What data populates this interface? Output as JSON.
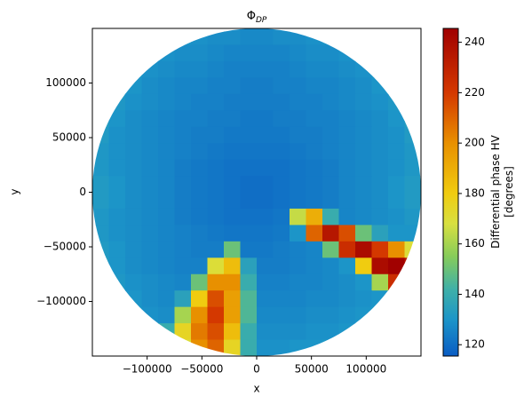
{
  "chart_data": {
    "type": "heatmap",
    "title": "Φ",
    "title_sub": "DP",
    "x_label": "x",
    "y_label": "y",
    "colorbar_label": [
      "Differential phase HV",
      "[degrees]"
    ],
    "xlim": [
      -150000,
      150000
    ],
    "ylim": [
      -150000,
      150000
    ],
    "xticks": [
      {
        "value": -100000,
        "label": "−100000"
      },
      {
        "value": -50000,
        "label": "−50000"
      },
      0,
      50000,
      100000
    ],
    "yticks": [
      {
        "value": -100000,
        "label": "−100000"
      },
      {
        "value": -50000,
        "label": "−50000"
      },
      0,
      50000,
      100000
    ],
    "clim": [
      115.5,
      245.5
    ],
    "cticks": [
      120,
      140,
      160,
      180,
      200,
      220,
      240
    ],
    "colorscale": [
      [
        115.5,
        "#0a5cc4"
      ],
      [
        130,
        "#1c95c8"
      ],
      [
        142,
        "#3fb0a8"
      ],
      [
        155,
        "#86cc5a"
      ],
      [
        168,
        "#d8e040"
      ],
      [
        180,
        "#f0cc10"
      ],
      [
        200,
        "#e89000"
      ],
      [
        220,
        "#d43800"
      ],
      [
        245.5,
        "#a00000"
      ]
    ],
    "x": [
      -142500,
      -127500,
      -112500,
      -97500,
      -82500,
      -67500,
      -52500,
      -37500,
      -22500,
      -7500,
      7500,
      22500,
      37500,
      52500,
      67500,
      82500,
      97500,
      112500,
      127500,
      142500
    ],
    "y": [
      142500,
      127500,
      112500,
      97500,
      82500,
      67500,
      52500,
      37500,
      22500,
      7500,
      -7500,
      -22500,
      -37500,
      -52500,
      -67500,
      -82500,
      -97500,
      -112500,
      -127500,
      -142500
    ],
    "z": [
      [
        null,
        null,
        null,
        null,
        null,
        130,
        129,
        128,
        128,
        127,
        127,
        128,
        128,
        129,
        130,
        null,
        null,
        null,
        null,
        null
      ],
      [
        null,
        null,
        null,
        131,
        129,
        128,
        128,
        127,
        126,
        126,
        126,
        126,
        127,
        128,
        128,
        129,
        131,
        null,
        null,
        null
      ],
      [
        null,
        null,
        131,
        129,
        128,
        127,
        127,
        126,
        125,
        125,
        125,
        125,
        126,
        127,
        127,
        128,
        129,
        131,
        null,
        null
      ],
      [
        null,
        132,
        130,
        128,
        127,
        126,
        126,
        125,
        125,
        124,
        124,
        125,
        125,
        126,
        126,
        127,
        128,
        130,
        132,
        null
      ],
      [
        null,
        131,
        129,
        128,
        127,
        126,
        125,
        125,
        124,
        124,
        124,
        124,
        125,
        125,
        126,
        127,
        128,
        129,
        131,
        null
      ],
      [
        133,
        130,
        128,
        127,
        126,
        125,
        125,
        124,
        124,
        123,
        123,
        124,
        124,
        125,
        125,
        126,
        127,
        128,
        130,
        133
      ],
      [
        132,
        129,
        128,
        127,
        126,
        125,
        124,
        124,
        123,
        123,
        123,
        123,
        124,
        124,
        125,
        126,
        127,
        128,
        129,
        132
      ],
      [
        131,
        129,
        128,
        127,
        126,
        125,
        124,
        123,
        122,
        122,
        122,
        122,
        123,
        124,
        125,
        126,
        127,
        128,
        129,
        131
      ],
      [
        131,
        129,
        128,
        127,
        126,
        124,
        123,
        122,
        121,
        121,
        121,
        121,
        122,
        123,
        124,
        126,
        127,
        128,
        129,
        131
      ],
      [
        132,
        130,
        128,
        127,
        126,
        124,
        123,
        122,
        121,
        120,
        120,
        121,
        122,
        123,
        124,
        126,
        127,
        128,
        130,
        132
      ],
      [
        132,
        130,
        128,
        127,
        126,
        124,
        123,
        122,
        121,
        120,
        120,
        121,
        122,
        123,
        124,
        126,
        127,
        128,
        130,
        132
      ],
      [
        131,
        129,
        128,
        127,
        126,
        124,
        123,
        122,
        121,
        121,
        121,
        122,
        165,
        190,
        140,
        126,
        127,
        128,
        129,
        131
      ],
      [
        131,
        129,
        128,
        127,
        126,
        125,
        124,
        123,
        122,
        122,
        122,
        123,
        130,
        210,
        235,
        215,
        150,
        135,
        130,
        130
      ],
      [
        132,
        130,
        128,
        127,
        126,
        125,
        124,
        124,
        150,
        123,
        123,
        124,
        125,
        126,
        150,
        225,
        240,
        220,
        200,
        170
      ],
      [
        133,
        130,
        128,
        127,
        126,
        125,
        125,
        170,
        185,
        135,
        124,
        124,
        125,
        126,
        127,
        130,
        180,
        240,
        245,
        235
      ],
      [
        null,
        131,
        129,
        128,
        127,
        126,
        150,
        200,
        200,
        140,
        125,
        125,
        126,
        126,
        127,
        128,
        130,
        160,
        225,
        null
      ],
      [
        null,
        132,
        130,
        128,
        127,
        135,
        180,
        215,
        195,
        145,
        126,
        126,
        126,
        127,
        127,
        128,
        129,
        130,
        140,
        null
      ],
      [
        null,
        null,
        131,
        129,
        128,
        160,
        200,
        220,
        195,
        145,
        127,
        127,
        127,
        128,
        128,
        129,
        130,
        131,
        null,
        null
      ],
      [
        null,
        null,
        null,
        130,
        140,
        175,
        205,
        215,
        185,
        140,
        128,
        128,
        128,
        129,
        129,
        130,
        131,
        null,
        null,
        null
      ],
      [
        null,
        null,
        null,
        null,
        null,
        170,
        200,
        210,
        175,
        140,
        129,
        129,
        130,
        130,
        131,
        null,
        null,
        null,
        null,
        null
      ]
    ]
  }
}
